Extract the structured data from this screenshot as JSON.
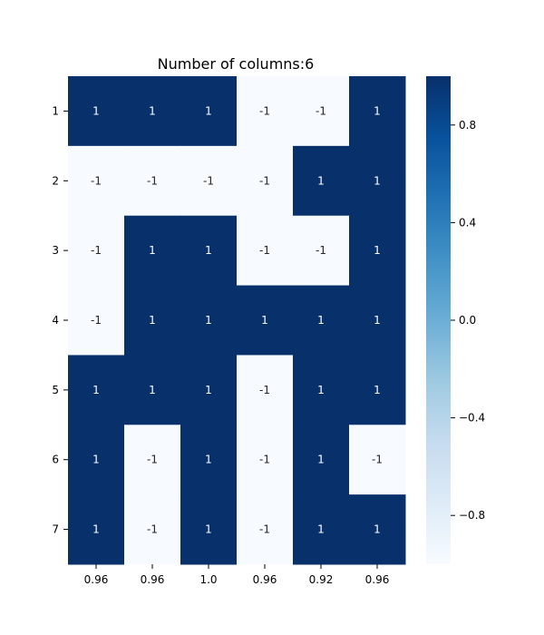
{
  "chart_data": {
    "type": "heatmap",
    "title": "Number of columns:6",
    "xlabel": "",
    "ylabel": "",
    "row_labels": [
      "1",
      "2",
      "3",
      "4",
      "5",
      "6",
      "7"
    ],
    "col_labels": [
      "0.96",
      "0.96",
      "1.0",
      "0.96",
      "0.92",
      "0.96"
    ],
    "values": [
      [
        1,
        1,
        1,
        -1,
        -1,
        1
      ],
      [
        -1,
        -1,
        -1,
        -1,
        1,
        1
      ],
      [
        -1,
        1,
        1,
        -1,
        -1,
        1
      ],
      [
        -1,
        1,
        1,
        1,
        1,
        1
      ],
      [
        1,
        1,
        1,
        -1,
        1,
        1
      ],
      [
        1,
        -1,
        1,
        -1,
        1,
        -1
      ],
      [
        1,
        -1,
        1,
        -1,
        1,
        1
      ]
    ],
    "vmin": -1,
    "vmax": 1,
    "colormap": "Blues",
    "colorbar": {
      "ticks": [
        0.8,
        0.4,
        0.0,
        -0.4,
        -0.8
      ],
      "tick_labels": [
        "0.8",
        "0.4",
        "0.0",
        "−0.4",
        "−0.8"
      ]
    },
    "colors": {
      "low": "#f7fbff",
      "high": "#08306b",
      "text_on_dark": "#ffffff",
      "text_on_light": "#262626"
    }
  }
}
